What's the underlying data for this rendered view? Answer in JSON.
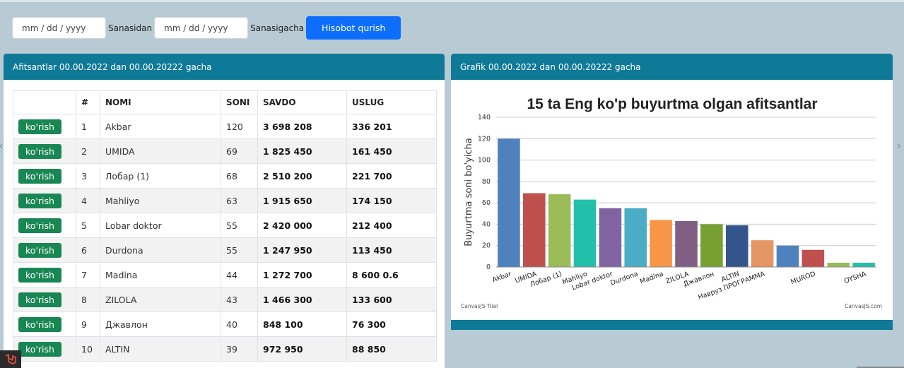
{
  "filter": {
    "from_placeholder": "mm / dd / yyyy",
    "from_label": "Sanasidan",
    "to_placeholder": "mm / dd / yyyy",
    "to_label": "Sanasigacha",
    "submit_label": "Hisobot qurish"
  },
  "left_panel": {
    "title": "Afitsantlar 00.00.2022 dan 00.00.20222 gacha",
    "columns": [
      "",
      "#",
      "NOMI",
      "SONI",
      "SAVDO",
      "USLUG"
    ],
    "rows": [
      {
        "btn": "ko'rish",
        "n": "1",
        "name": "Akbar",
        "soni": "120",
        "savdo": "3 698 208",
        "uslug": "336 201"
      },
      {
        "btn": "ko'rish",
        "n": "2",
        "name": "UMIDA",
        "soni": "69",
        "savdo": "1 825 450",
        "uslug": "161 450"
      },
      {
        "btn": "ko'rish",
        "n": "3",
        "name": "Лобар (1)",
        "soni": "68",
        "savdo": "2 510 200",
        "uslug": "221 700"
      },
      {
        "btn": "ko'rish",
        "n": "4",
        "name": "Mahliyo",
        "soni": "63",
        "savdo": "1 915 650",
        "uslug": "174 150"
      },
      {
        "btn": "ko'rish",
        "n": "5",
        "name": "Lobar doktor",
        "soni": "55",
        "savdo": "2 420 000",
        "uslug": "212 400"
      },
      {
        "btn": "ko'rish",
        "n": "6",
        "name": "Durdona",
        "soni": "55",
        "savdo": "1 247 950",
        "uslug": "113 450"
      },
      {
        "btn": "ko'rish",
        "n": "7",
        "name": "Madina",
        "soni": "44",
        "savdo": "1 272 700",
        "uslug": "8 600 0.6"
      },
      {
        "btn": "ko'rish",
        "n": "8",
        "name": "ZILOLA",
        "soni": "43",
        "savdo": "1 466 300",
        "uslug": "133 600"
      },
      {
        "btn": "ko'rish",
        "n": "9",
        "name": "Джавлон",
        "soni": "40",
        "savdo": "848 100",
        "uslug": "76 300"
      },
      {
        "btn": "ko'rish",
        "n": "10",
        "name": "ALTIN",
        "soni": "39",
        "savdo": "972 950",
        "uslug": "88 850"
      }
    ]
  },
  "right_panel": {
    "title": "Grafik 00.00.2022 dan 00.00.20222 gacha",
    "credit_left": "CanvasJS Trial",
    "credit_right": "CanvasJS.com"
  },
  "chart_data": {
    "type": "bar",
    "title": "15 ta Eng ko'p buyurtma olgan afitsantlar",
    "ylabel": "Buyurtma soni bo'yicha",
    "xlabel": "",
    "ylim": [
      0,
      140
    ],
    "yticks": [
      0,
      20,
      40,
      60,
      80,
      100,
      120,
      140
    ],
    "categories": [
      "Akbar",
      "UMIDA",
      "Лобар (1)",
      "Mahliyo",
      "Lobar doktor",
      "Durdona",
      "Madina",
      "ZILOLA",
      "Джавлон",
      "ALTIN",
      "Навруз ПРОГРАММА",
      "",
      "MUROD",
      "",
      "OYSHA"
    ],
    "tick_labels_shown": [
      "Akbar",
      "Лобар (1)",
      "Lobar doktor",
      "Madina",
      "Джавлон",
      "Навруз ПРОГРАММА",
      "MUROD",
      "OYSHA"
    ],
    "values": [
      120,
      69,
      68,
      63,
      55,
      55,
      44,
      43,
      40,
      39,
      25,
      20,
      16,
      4,
      4
    ],
    "colors": [
      "#4f81bc",
      "#c0504e",
      "#9bbb58",
      "#23bfaa",
      "#8064a1",
      "#4aacc5",
      "#f79647",
      "#7f6084",
      "#77a033",
      "#33558b",
      "#e59566",
      "#4f81bc",
      "#c0504e",
      "#9bbb58",
      "#23bfaa"
    ]
  }
}
